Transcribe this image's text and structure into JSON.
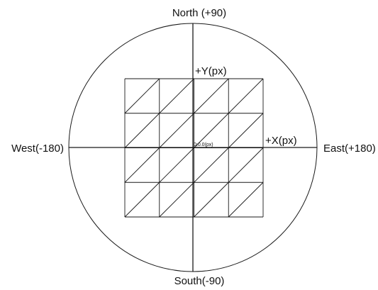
{
  "labels": {
    "north": "North (+90)",
    "south": "South(-90)",
    "west": "West(-180)",
    "east": "East(+180)",
    "plus_y": "+Y(px)",
    "plus_x": "+X(px)",
    "origin": "0;0.0(px)"
  },
  "grid": {
    "rows": 4,
    "cols": 4,
    "diagonals": "each cell split by one diagonal from bottom-left to top-right"
  },
  "colors": {
    "line": "#1a1a1a",
    "text": "#111111",
    "background": "#ffffff"
  }
}
